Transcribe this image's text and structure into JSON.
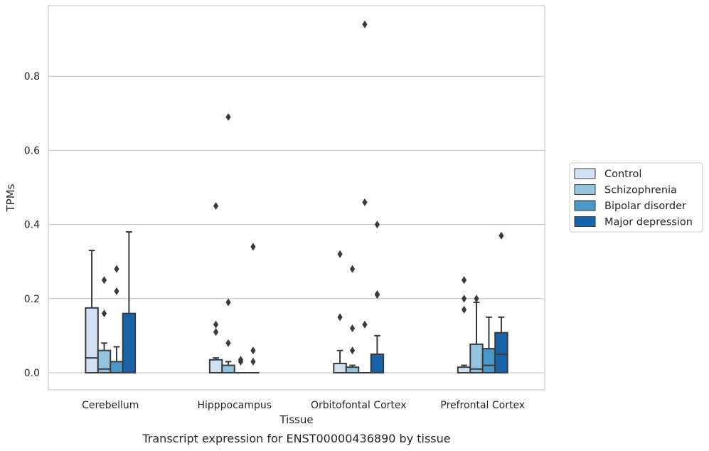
{
  "chart_data": {
    "type": "box",
    "title": "",
    "caption": "Transcript expression for ENST00000436890 by tissue",
    "xlabel": "Tissue",
    "ylabel": "TPMs",
    "ylim": [
      -0.045,
      0.985
    ],
    "yticks": [
      0.0,
      0.2,
      0.4,
      0.6,
      0.8
    ],
    "ytick_labels": [
      "0.0",
      "0.2",
      "0.4",
      "0.6",
      "0.8"
    ],
    "grid": "horizontal",
    "legend_position": "right",
    "categories": [
      "Cerebellum",
      "Hipppocampus",
      "Orbitofontal Cortex",
      "Prefrontal Cortex"
    ],
    "series": [
      {
        "name": "Control",
        "color": "#d0e1f2",
        "boxes": [
          {
            "q1": 0.0,
            "median": 0.04,
            "q3": 0.175,
            "whislo": 0.0,
            "whishi": 0.33,
            "fliers": []
          },
          {
            "q1": 0.0,
            "median": 0.0,
            "q3": 0.035,
            "whislo": 0.0,
            "whishi": 0.04,
            "fliers": [
              0.11,
              0.13,
              0.45
            ]
          },
          {
            "q1": 0.0,
            "median": 0.0,
            "q3": 0.025,
            "whislo": 0.0,
            "whishi": 0.06,
            "fliers": [
              0.15,
              0.32
            ]
          },
          {
            "q1": 0.0,
            "median": 0.0,
            "q3": 0.015,
            "whislo": 0.0,
            "whishi": 0.02,
            "fliers": [
              0.17,
              0.2,
              0.25
            ]
          }
        ]
      },
      {
        "name": "Schizophrenia",
        "color": "#94c4df",
        "boxes": [
          {
            "q1": 0.0,
            "median": 0.01,
            "q3": 0.06,
            "whislo": 0.0,
            "whishi": 0.08,
            "fliers": [
              0.16,
              0.25
            ]
          },
          {
            "q1": 0.0,
            "median": 0.0,
            "q3": 0.02,
            "whislo": 0.0,
            "whishi": 0.03,
            "fliers": [
              0.08,
              0.19,
              0.69
            ]
          },
          {
            "q1": 0.0,
            "median": 0.0,
            "q3": 0.015,
            "whislo": 0.0,
            "whishi": 0.02,
            "fliers": [
              0.06,
              0.12,
              0.28
            ]
          },
          {
            "q1": 0.0,
            "median": 0.01,
            "q3": 0.077,
            "whislo": 0.0,
            "whishi": 0.19,
            "fliers": [
              0.2
            ]
          }
        ]
      },
      {
        "name": "Bipolar disorder",
        "color": "#4a98c9",
        "boxes": [
          {
            "q1": 0.0,
            "median": 0.0,
            "q3": 0.03,
            "whislo": 0.0,
            "whishi": 0.07,
            "fliers": [
              0.22,
              0.28
            ]
          },
          {
            "q1": 0.0,
            "median": 0.0,
            "q3": 0.0,
            "whislo": 0.0,
            "whishi": 0.0,
            "fliers": [
              0.03,
              0.035
            ]
          },
          {
            "q1": 0.0,
            "median": 0.0,
            "q3": 0.0,
            "whislo": 0.0,
            "whishi": 0.0,
            "fliers": [
              0.13,
              0.46,
              0.94
            ]
          },
          {
            "q1": 0.0,
            "median": 0.02,
            "q3": 0.065,
            "whislo": 0.0,
            "whishi": 0.15,
            "fliers": []
          }
        ]
      },
      {
        "name": "Major depression",
        "color": "#1764ab",
        "boxes": [
          {
            "q1": 0.0,
            "median": 0.0,
            "q3": 0.16,
            "whislo": 0.0,
            "whishi": 0.38,
            "fliers": []
          },
          {
            "q1": 0.0,
            "median": 0.0,
            "q3": 0.0,
            "whislo": 0.0,
            "whishi": 0.0,
            "fliers": [
              0.03,
              0.06,
              0.34
            ]
          },
          {
            "q1": 0.0,
            "median": 0.0,
            "q3": 0.05,
            "whislo": 0.0,
            "whishi": 0.1,
            "fliers": [
              0.21,
              0.212,
              0.4
            ]
          },
          {
            "q1": 0.0,
            "median": 0.05,
            "q3": 0.108,
            "whislo": 0.0,
            "whishi": 0.15,
            "fliers": [
              0.37
            ]
          }
        ]
      }
    ]
  }
}
